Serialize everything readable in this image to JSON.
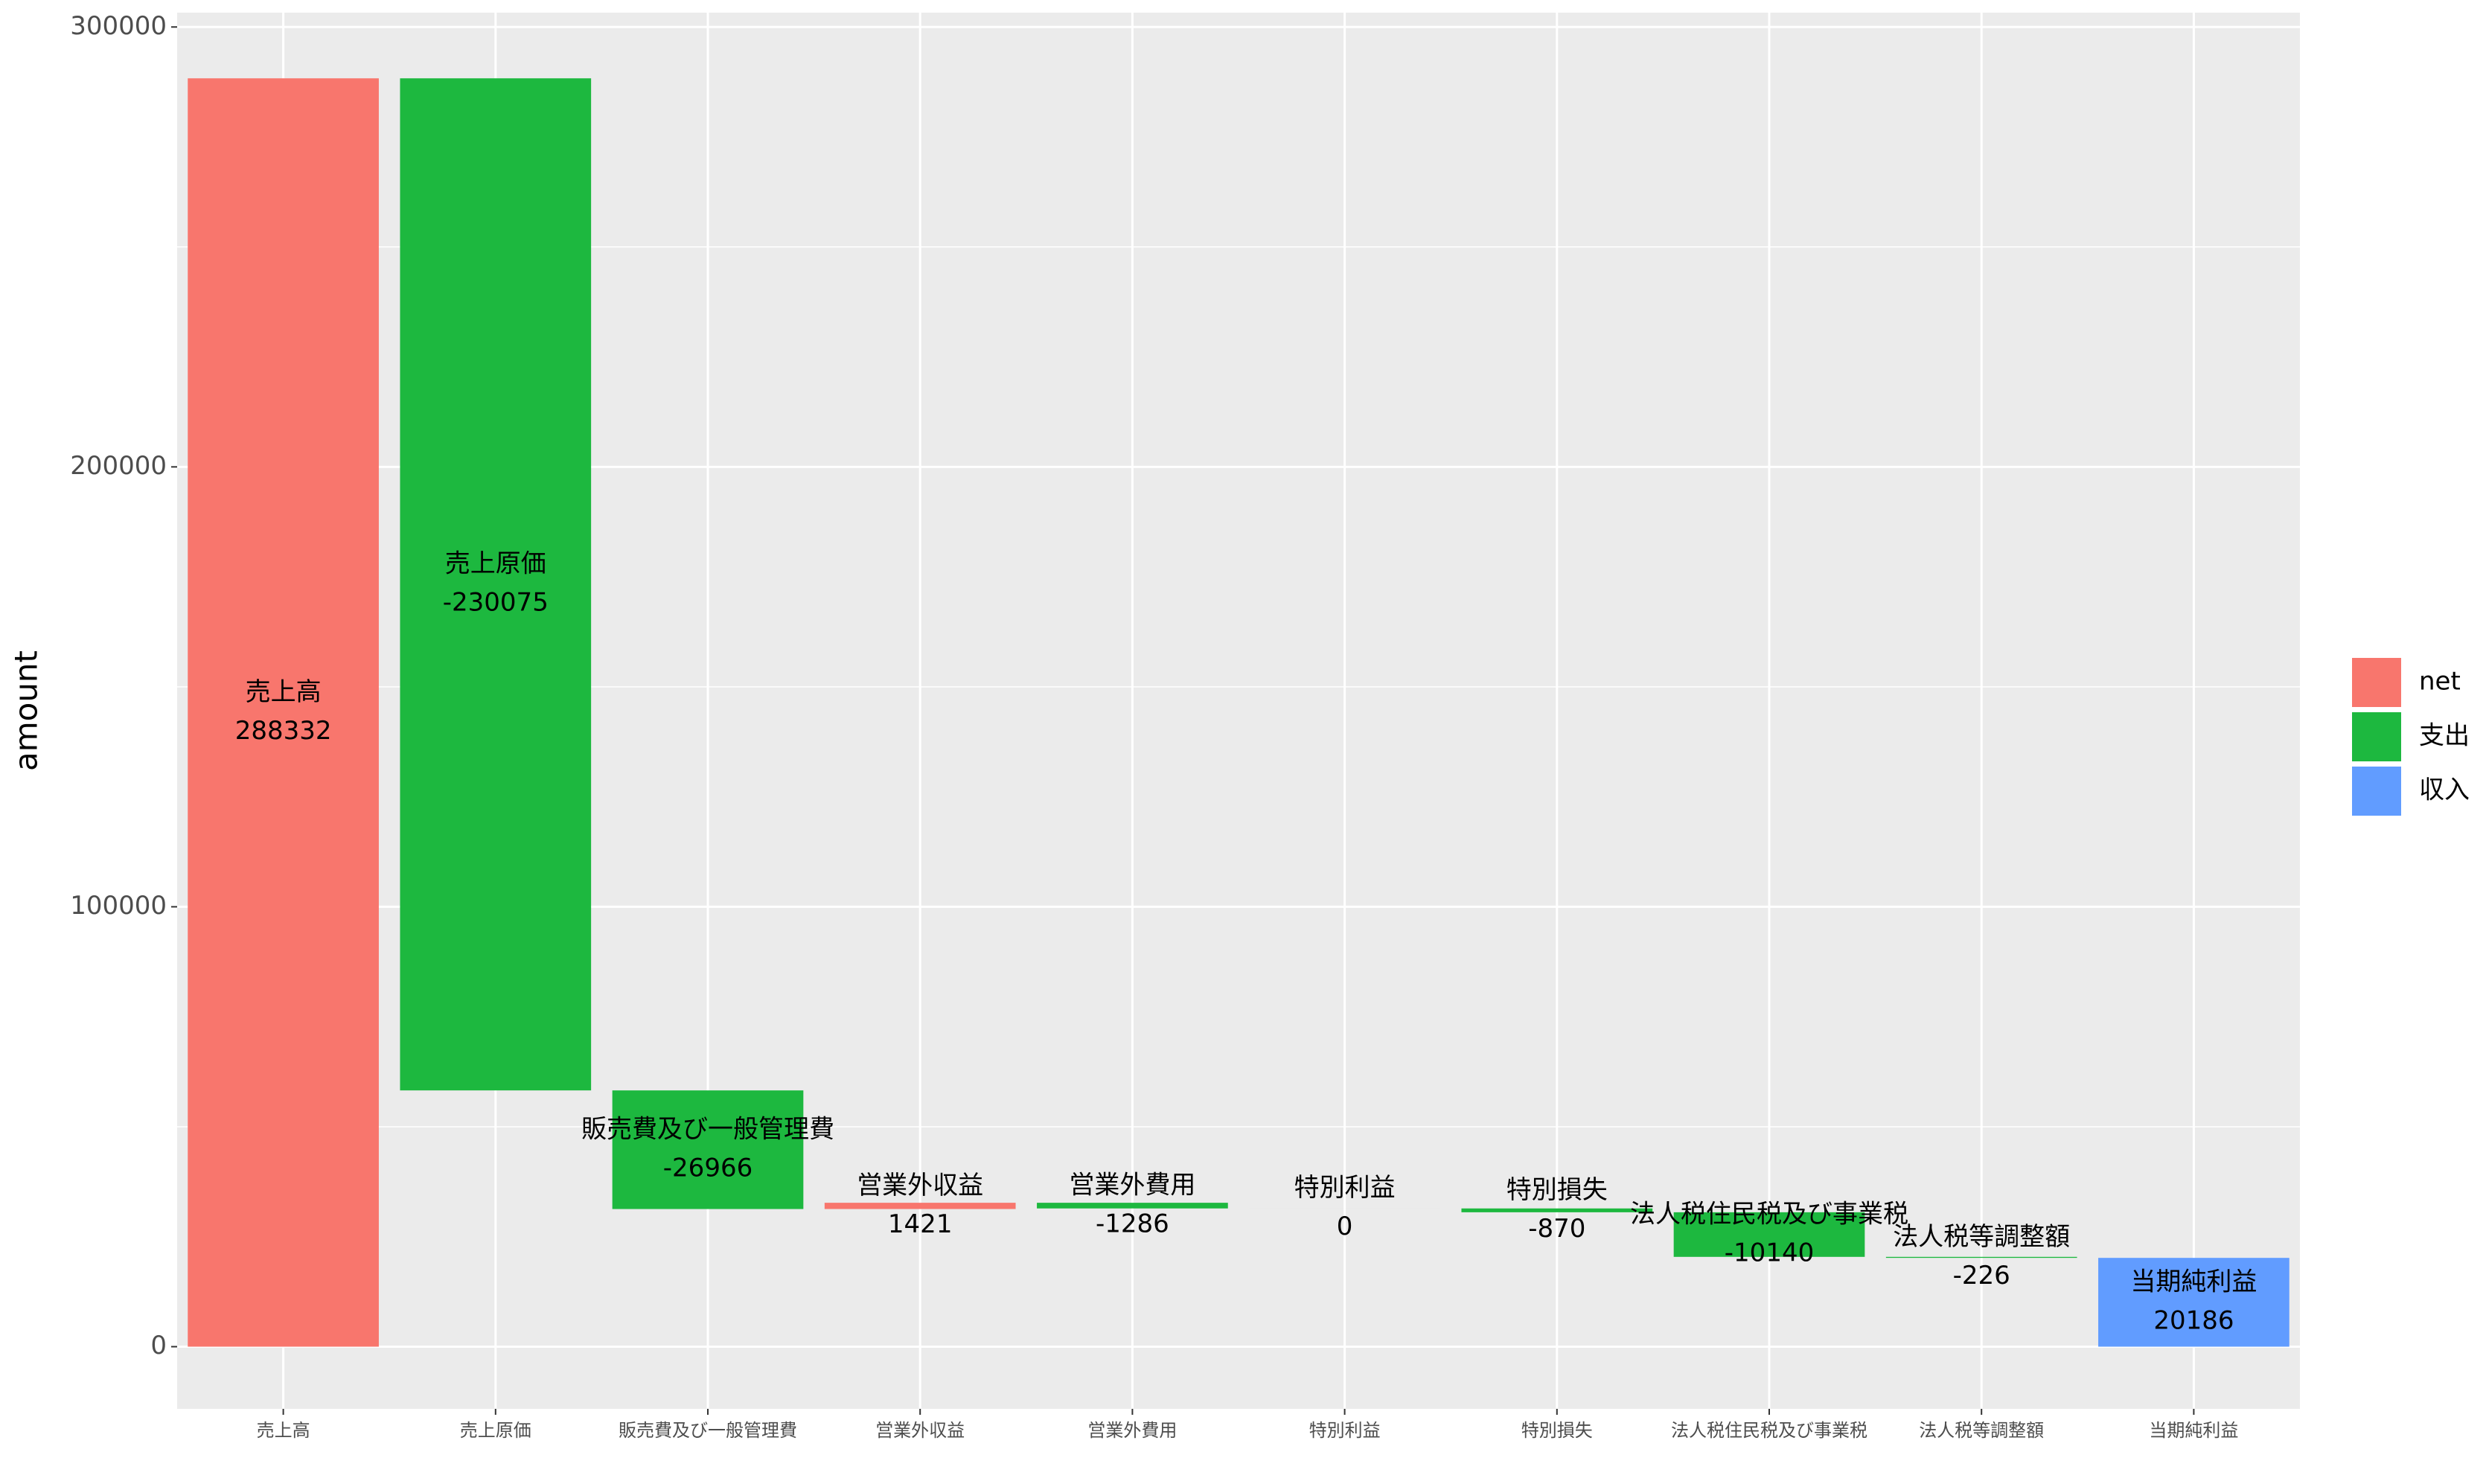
{
  "chart_data": {
    "type": "waterfall",
    "categories": [
      "売上高",
      "売上原価",
      "販売費及び一般管理費",
      "営業外収益",
      "営業外費用",
      "特別利益",
      "特別損失",
      "法人税住民税及び事業税",
      "法人税等調整額",
      "当期純利益"
    ],
    "values": [
      288332,
      -230075,
      -26966,
      1421,
      -1286,
      0,
      -870,
      -10140,
      -226,
      20186
    ],
    "colors": [
      "#F8766D",
      "#1DB83F",
      "#1DB83F",
      "#F8766D",
      "#1DB83F",
      "#1DB83F",
      "#1DB83F",
      "#1DB83F",
      "#1DB83F",
      "#619CFF"
    ],
    "total_last": true,
    "y_label": "amount",
    "ylim": [
      -14130,
      303260
    ],
    "yticks": [
      0,
      100000,
      200000,
      300000
    ],
    "grid": true,
    "legend_position": "right",
    "legend": [
      {
        "name": "net",
        "color": "#F8766D"
      },
      {
        "name": "支出",
        "color": "#1DB83F"
      },
      {
        "name": "収入",
        "color": "#619CFF"
      }
    ]
  }
}
